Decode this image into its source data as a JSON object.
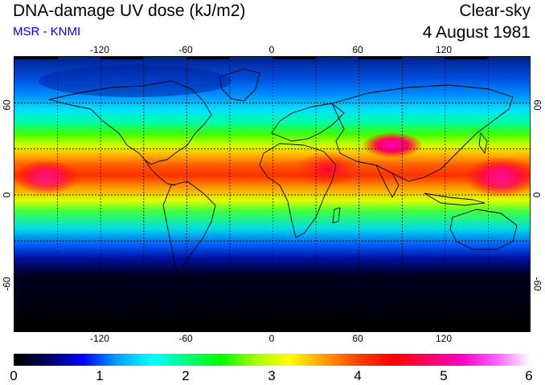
{
  "header": {
    "title": "DNA-damage UV dose (kJ/m2)",
    "source": "MSR - KNMI",
    "condition": "Clear-sky",
    "date": "4 August 1981"
  },
  "map": {
    "projection": "equirectangular",
    "lon_range": [
      -180,
      180
    ],
    "lat_range": [
      -90,
      90
    ],
    "lon_ticks": [
      "-120",
      "-60",
      "0",
      "60",
      "120"
    ],
    "lat_ticks": [
      "60",
      "0",
      "-60"
    ],
    "grid": "dotted, every 30 degrees"
  },
  "colorbar": {
    "min": 0,
    "max": 6,
    "tick_labels": [
      "0",
      "1",
      "2",
      "3",
      "4",
      "5",
      "6"
    ],
    "colors": [
      "#000000",
      "#000060",
      "#0000ff",
      "#00a0ff",
      "#00ffff",
      "#00ff80",
      "#00ff00",
      "#a0ff00",
      "#ffff00",
      "#ffa000",
      "#ff4000",
      "#ff0000",
      "#ff0060",
      "#ff00c0",
      "#ff60ff",
      "#ffffff"
    ]
  }
}
